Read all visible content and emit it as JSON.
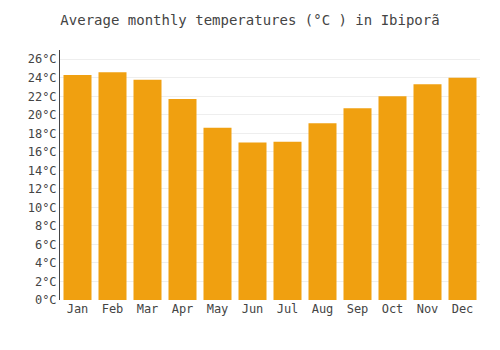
{
  "chart_data": {
    "type": "bar",
    "title": "Average monthly temperatures (°C ) in Ibiporã",
    "categories": [
      "Jan",
      "Feb",
      "Mar",
      "Apr",
      "May",
      "Jun",
      "Jul",
      "Aug",
      "Sep",
      "Oct",
      "Nov",
      "Dec"
    ],
    "values": [
      24.3,
      24.6,
      23.8,
      21.7,
      18.6,
      17.0,
      17.1,
      19.1,
      20.7,
      22.0,
      23.3,
      24.0
    ],
    "color": "#F0A010",
    "ylim": [
      0,
      27
    ],
    "yticks": [
      {
        "value": 0,
        "label": "0°C"
      },
      {
        "value": 2,
        "label": "2°C"
      },
      {
        "value": 4,
        "label": "4°C"
      },
      {
        "value": 6,
        "label": "6°C"
      },
      {
        "value": 8,
        "label": "8°C"
      },
      {
        "value": 10,
        "label": "10°C"
      },
      {
        "value": 12,
        "label": "12°C"
      },
      {
        "value": 14,
        "label": "14°C"
      },
      {
        "value": 16,
        "label": "16°C"
      },
      {
        "value": 18,
        "label": "18°C"
      },
      {
        "value": 20,
        "label": "20°C"
      },
      {
        "value": 22,
        "label": "22°C"
      },
      {
        "value": 24,
        "label": "24°C"
      },
      {
        "value": 26,
        "label": "26°C"
      }
    ],
    "grid": true
  }
}
